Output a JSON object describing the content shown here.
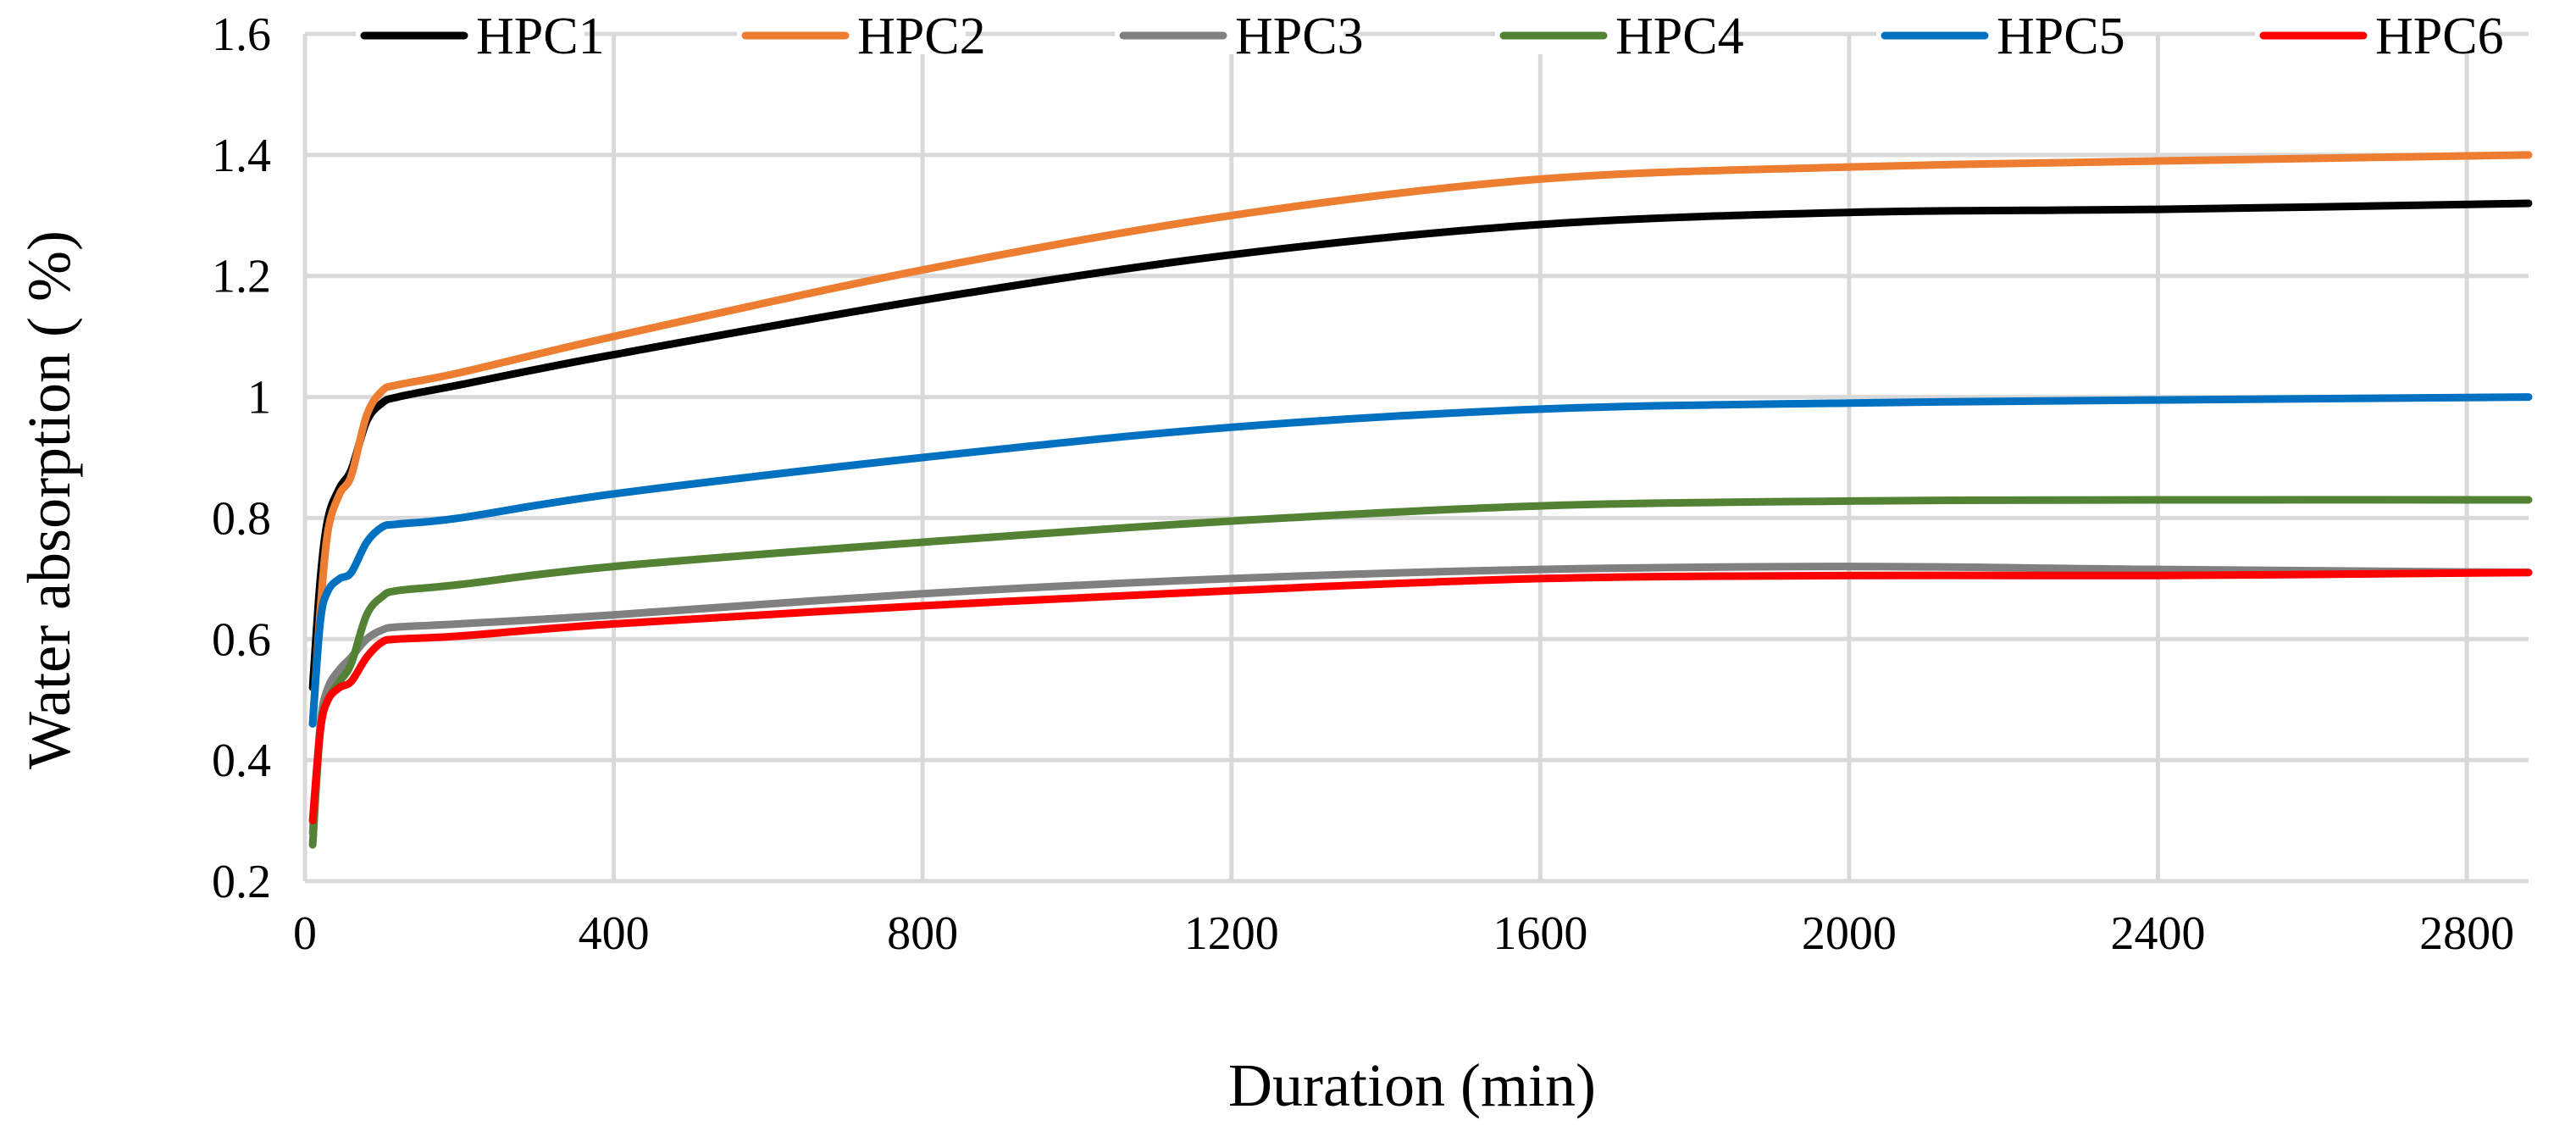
{
  "chart_data": {
    "type": "line",
    "title": "",
    "xlabel": "Duration (min)",
    "ylabel": "Water absorption ( %)",
    "xlim": [
      0,
      2880
    ],
    "ylim": [
      0.2,
      1.6
    ],
    "grid": true,
    "legend_position": "top",
    "x_ticks": [
      0,
      400,
      800,
      1200,
      1600,
      2000,
      2400,
      2800
    ],
    "x_tick_labels": [
      "0",
      "400",
      "800",
      "1200",
      "1600",
      "2000",
      "2400",
      "2800"
    ],
    "y_ticks": [
      0.2,
      0.4,
      0.6,
      0.8,
      1.0,
      1.2,
      1.4,
      1.6
    ],
    "y_tick_labels": [
      "0.2",
      "0.4",
      "0.6",
      "0.8",
      "1",
      "1.2",
      "1.4",
      "1.6"
    ],
    "series": [
      {
        "name": "HPC1",
        "color": "#000000",
        "x": [
          10,
          20,
          30,
          45,
          60,
          80,
          100,
          120,
          200,
          400,
          800,
          1200,
          1600,
          2000,
          2400,
          2880
        ],
        "y": [
          0.52,
          0.7,
          0.8,
          0.85,
          0.88,
          0.96,
          0.99,
          1.0,
          1.02,
          1.07,
          1.16,
          1.235,
          1.285,
          1.305,
          1.31,
          1.32
        ]
      },
      {
        "name": "HPC2",
        "color": "#ed7d31",
        "x": [
          10,
          20,
          30,
          45,
          60,
          80,
          100,
          120,
          200,
          400,
          800,
          1200,
          1600,
          2000,
          2400,
          2880
        ],
        "y": [
          0.46,
          0.65,
          0.78,
          0.84,
          0.87,
          0.97,
          1.01,
          1.02,
          1.04,
          1.1,
          1.21,
          1.3,
          1.36,
          1.38,
          1.39,
          1.4
        ]
      },
      {
        "name": "HPC3",
        "color": "#808080",
        "x": [
          10,
          20,
          30,
          45,
          60,
          80,
          100,
          120,
          200,
          400,
          800,
          1200,
          1600,
          2000,
          2400,
          2880
        ],
        "y": [
          0.28,
          0.46,
          0.52,
          0.55,
          0.57,
          0.6,
          0.615,
          0.62,
          0.625,
          0.64,
          0.675,
          0.7,
          0.715,
          0.72,
          0.715,
          0.71
        ]
      },
      {
        "name": "HPC4",
        "color": "#548235",
        "x": [
          10,
          20,
          30,
          45,
          60,
          80,
          100,
          120,
          200,
          400,
          800,
          1200,
          1600,
          2000,
          2400,
          2880
        ],
        "y": [
          0.26,
          0.45,
          0.5,
          0.53,
          0.56,
          0.64,
          0.67,
          0.68,
          0.69,
          0.72,
          0.76,
          0.795,
          0.82,
          0.828,
          0.83,
          0.83
        ]
      },
      {
        "name": "HPC5",
        "color": "#0070c0",
        "x": [
          10,
          20,
          30,
          45,
          60,
          80,
          100,
          120,
          200,
          400,
          800,
          1200,
          1600,
          2000,
          2400,
          2880
        ],
        "y": [
          0.46,
          0.63,
          0.68,
          0.7,
          0.71,
          0.76,
          0.785,
          0.79,
          0.8,
          0.84,
          0.9,
          0.95,
          0.98,
          0.99,
          0.995,
          1.0
        ]
      },
      {
        "name": "HPC6",
        "color": "#ff0000",
        "x": [
          10,
          20,
          30,
          45,
          60,
          80,
          100,
          120,
          200,
          400,
          800,
          1200,
          1600,
          2000,
          2400,
          2880
        ],
        "y": [
          0.3,
          0.45,
          0.5,
          0.52,
          0.53,
          0.57,
          0.595,
          0.6,
          0.605,
          0.625,
          0.655,
          0.68,
          0.7,
          0.705,
          0.705,
          0.71
        ]
      }
    ]
  }
}
